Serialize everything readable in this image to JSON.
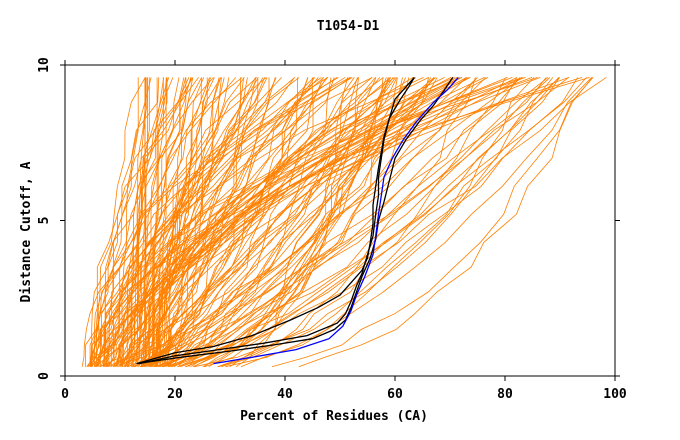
{
  "chart_data": {
    "type": "line",
    "title": "T1054-D1",
    "xlabel": "Percent of Residues (CA)",
    "ylabel": "Distance Cutoff, A",
    "xlim": [
      0,
      100
    ],
    "ylim": [
      0,
      10
    ],
    "x_ticks": [
      "0",
      "20",
      "40",
      "60",
      "80",
      "100"
    ],
    "y_ticks": [
      "0",
      "5",
      "10"
    ],
    "grid": false,
    "colors": {
      "background_models": "#ff8000",
      "highlight_models": "#000000",
      "reference_model": "#0000ff"
    },
    "series": [
      {
        "group": "highlight",
        "color": "#000000",
        "points": [
          [
            13.5,
            0.4
          ],
          [
            20,
            0.65
          ],
          [
            28,
            0.85
          ],
          [
            36,
            1.05
          ],
          [
            44,
            1.3
          ],
          [
            49.5,
            1.7
          ],
          [
            51,
            2.0
          ],
          [
            52,
            2.4
          ],
          [
            53,
            2.9
          ],
          [
            54,
            3.3
          ],
          [
            55,
            3.9
          ],
          [
            56,
            4.5
          ],
          [
            56.5,
            5.2
          ],
          [
            57,
            5.8
          ],
          [
            57,
            6.4
          ],
          [
            57.5,
            7.0
          ],
          [
            58,
            7.6
          ],
          [
            59,
            8.3
          ],
          [
            60,
            8.9
          ],
          [
            62,
            9.3
          ],
          [
            63.5,
            9.6
          ]
        ]
      },
      {
        "group": "highlight",
        "color": "#000000",
        "points": [
          [
            13,
            0.4
          ],
          [
            20,
            0.75
          ],
          [
            27,
            0.95
          ],
          [
            34,
            1.3
          ],
          [
            41,
            1.8
          ],
          [
            46,
            2.2
          ],
          [
            50,
            2.6
          ],
          [
            52,
            3.0
          ],
          [
            54,
            3.4
          ],
          [
            55,
            3.8
          ],
          [
            55.5,
            4.3
          ],
          [
            56,
            4.9
          ],
          [
            56,
            5.5
          ],
          [
            56.5,
            6.1
          ],
          [
            57,
            6.7
          ],
          [
            57.5,
            7.2
          ],
          [
            58,
            7.7
          ],
          [
            59,
            8.3
          ],
          [
            61,
            8.9
          ],
          [
            62.5,
            9.3
          ],
          [
            63.5,
            9.6
          ]
        ]
      },
      {
        "group": "highlight",
        "color": "#000000",
        "points": [
          [
            13,
            0.4
          ],
          [
            21,
            0.6
          ],
          [
            30,
            0.8
          ],
          [
            38,
            1.0
          ],
          [
            45,
            1.2
          ],
          [
            49,
            1.5
          ],
          [
            51,
            1.8
          ],
          [
            52,
            2.2
          ],
          [
            53,
            2.7
          ],
          [
            54,
            3.2
          ],
          [
            55.5,
            3.8
          ],
          [
            56.5,
            4.4
          ],
          [
            57,
            5.0
          ],
          [
            58,
            5.6
          ],
          [
            59,
            6.3
          ],
          [
            60,
            7.0
          ],
          [
            62,
            7.6
          ],
          [
            64.5,
            8.2
          ],
          [
            67,
            8.7
          ],
          [
            69,
            9.2
          ],
          [
            70.5,
            9.6
          ]
        ]
      },
      {
        "group": "reference",
        "color": "#0000ff",
        "points": [
          [
            27,
            0.4
          ],
          [
            34,
            0.6
          ],
          [
            42,
            0.85
          ],
          [
            48,
            1.2
          ],
          [
            50.5,
            1.6
          ],
          [
            52,
            2.1
          ],
          [
            53,
            2.6
          ],
          [
            54.5,
            3.2
          ],
          [
            56,
            3.9
          ],
          [
            56.5,
            4.5
          ],
          [
            57,
            5.2
          ],
          [
            57.5,
            5.8
          ],
          [
            58,
            6.4
          ],
          [
            59.5,
            7.0
          ],
          [
            61.5,
            7.6
          ],
          [
            64,
            8.2
          ],
          [
            67,
            8.8
          ],
          [
            69.5,
            9.2
          ],
          [
            71.5,
            9.6
          ]
        ]
      }
    ]
  }
}
